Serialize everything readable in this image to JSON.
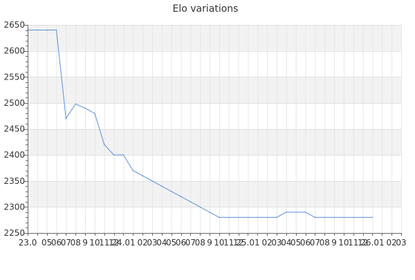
{
  "chart_data": {
    "type": "line",
    "title": "Elo variations",
    "xlabel": "",
    "ylabel": "",
    "ylim": [
      2250,
      2650
    ],
    "yticks": [
      2250,
      2300,
      2350,
      2400,
      2450,
      2500,
      2550,
      2600,
      2650
    ],
    "grid": true,
    "band_colors": [
      "#ffffff",
      "#f2f2f2"
    ],
    "line_color": "#5b8fd6",
    "x_tick_labels": [
      "23.0",
      "",
      "05",
      "06",
      "07",
      "08",
      "9",
      "10",
      "11",
      "12",
      "24.01",
      "",
      "02",
      "03",
      "04",
      "05",
      "06",
      "07",
      "08",
      "9",
      "10",
      "11",
      "12",
      "25.01",
      "",
      "02",
      "03",
      "04",
      "05",
      "06",
      "07",
      "08",
      "9",
      "10",
      "11",
      "12",
      "26.01",
      "",
      "02",
      "03"
    ],
    "series": [
      {
        "values": [
          2640,
          2640,
          2640,
          2640,
          2470,
          2498,
          2490,
          2480,
          2420,
          2400,
          2400,
          2370,
          2360,
          2350,
          2340,
          2330,
          2320,
          2310,
          2300,
          2290,
          2280,
          2280,
          2280,
          2280,
          2280,
          2280,
          2280,
          2290,
          2290,
          2290,
          2280,
          2280,
          2280,
          2280,
          2280,
          2280,
          2280
        ]
      }
    ]
  }
}
